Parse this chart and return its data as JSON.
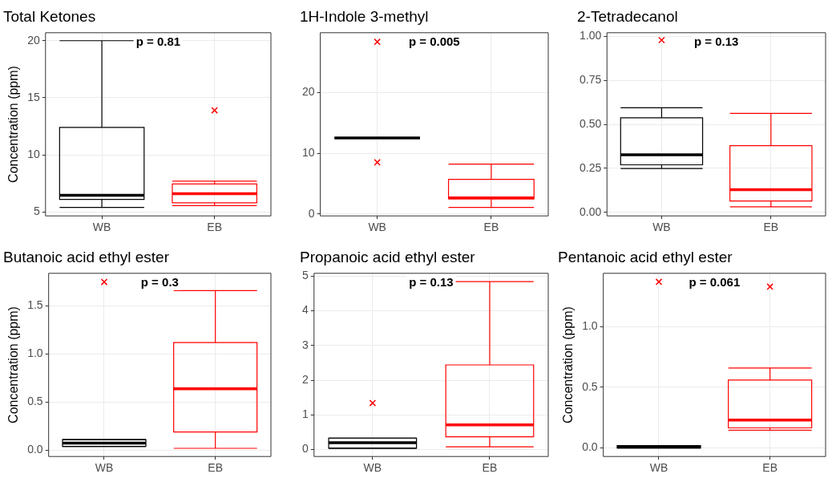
{
  "chart_data": [
    {
      "type": "box",
      "title": "Total Ketones",
      "ylabel": "Concentration (ppm)",
      "categories": [
        "WB",
        "EB"
      ],
      "ylim": [
        4.65,
        20.7
      ],
      "yticks": [
        5,
        10,
        15,
        20
      ],
      "grid": true,
      "annotations": [
        "p = 0.81"
      ],
      "series": [
        {
          "type": "box",
          "colors": [
            "#000000",
            "#ff0000"
          ],
          "boxes": [
            {
              "low": 5.4,
              "q1": 6.1,
              "median": 6.45,
              "q3": 12.4,
              "high": 20
            },
            {
              "low": 5.55,
              "q1": 5.8,
              "median": 6.6,
              "q3": 7.45,
              "high": 7.7
            }
          ]
        },
        {
          "type": "scatter",
          "marker": "cross",
          "color": "#ff0000",
          "x": [
            "EB"
          ],
          "values": [
            13.9
          ]
        }
      ]
    },
    {
      "type": "box",
      "title": "1H-Indole 3-methyl",
      "categories": [
        "WB",
        "EB"
      ],
      "ylim": [
        -0.3,
        29.8
      ],
      "yticks": [
        0,
        10,
        20
      ],
      "grid": true,
      "annotations": [
        "p = 0.005"
      ],
      "series": [
        {
          "type": "box",
          "colors": [
            "#000000",
            "#ff0000"
          ],
          "boxes": [
            {
              "low": 12.5,
              "q1": 12.5,
              "median": 12.5,
              "q3": 12.5,
              "high": 12.5
            },
            {
              "low": 1.1,
              "q1": 2.5,
              "median": 2.65,
              "q3": 5.7,
              "high": 8.2
            }
          ]
        },
        {
          "type": "scatter",
          "marker": "cross",
          "color": "#ff0000",
          "x": [
            "WB",
            "WB"
          ],
          "values": [
            28.3,
            8.5
          ]
        }
      ]
    },
    {
      "type": "box",
      "title": "2-Tetradecanol",
      "categories": [
        "WB",
        "EB"
      ],
      "ylim": [
        -0.02,
        1.02
      ],
      "yticks": [
        {
          "value": 0,
          "label": "0.00"
        },
        {
          "value": 0.25,
          "label": "0.25"
        },
        {
          "value": 0.5,
          "label": "0.50"
        },
        {
          "value": 0.75,
          "label": "0.75"
        },
        {
          "value": 1,
          "label": "1.00"
        }
      ],
      "grid": true,
      "annotations": [
        "p = 0.13"
      ],
      "series": [
        {
          "type": "box",
          "colors": [
            "#000000",
            "#ff0000"
          ],
          "boxes": [
            {
              "low": 0.249,
              "q1": 0.27,
              "median": 0.327,
              "q3": 0.537,
              "high": 0.594
            },
            {
              "low": 0.032,
              "q1": 0.065,
              "median": 0.129,
              "q3": 0.379,
              "high": 0.562
            }
          ]
        },
        {
          "type": "scatter",
          "marker": "cross",
          "color": "#ff0000",
          "x": [
            "WB"
          ],
          "values": [
            0.978
          ]
        }
      ]
    },
    {
      "type": "box",
      "title": "Butanoic acid ethyl ester",
      "ylabel": "Concentration (ppm)",
      "categories": [
        "WB",
        "EB"
      ],
      "ylim": [
        -0.065,
        1.84
      ],
      "yticks": [
        {
          "value": 0,
          "label": "0.0"
        },
        {
          "value": 0.5,
          "label": "0.5"
        },
        {
          "value": 1,
          "label": "1.0"
        },
        {
          "value": 1.5,
          "label": "1.5"
        }
      ],
      "grid": true,
      "annotations": [
        "p = 0.3"
      ],
      "series": [
        {
          "type": "box",
          "colors": [
            "#000000",
            "#ff0000"
          ],
          "boxes": [
            {
              "low": 0.04,
              "q1": 0.04,
              "median": 0.074,
              "q3": 0.11,
              "high": 0.11
            },
            {
              "low": 0.02,
              "q1": 0.19,
              "median": 0.64,
              "q3": 1.12,
              "high": 1.66
            }
          ]
        },
        {
          "type": "scatter",
          "marker": "cross",
          "color": "#ff0000",
          "x": [
            "WB"
          ],
          "values": [
            1.75
          ]
        }
      ]
    },
    {
      "type": "box",
      "title": "Propanoic acid ethyl ester",
      "categories": [
        "WB",
        "EB"
      ],
      "ylim": [
        -0.2,
        5.08
      ],
      "yticks": [
        0,
        1,
        2,
        3,
        4,
        5
      ],
      "grid": true,
      "annotations": [
        "p = 0.13"
      ],
      "series": [
        {
          "type": "box",
          "colors": [
            "#000000",
            "#ff0000"
          ],
          "boxes": [
            {
              "low": 0.04,
              "q1": 0.04,
              "median": 0.2,
              "q3": 0.33,
              "high": 0.33
            },
            {
              "low": 0.08,
              "q1": 0.37,
              "median": 0.71,
              "q3": 2.44,
              "high": 4.84
            }
          ]
        },
        {
          "type": "scatter",
          "marker": "cross",
          "color": "#ff0000",
          "x": [
            "WB"
          ],
          "values": [
            1.34
          ]
        }
      ]
    },
    {
      "type": "box",
      "title": "Pentanoic acid ethyl ester",
      "ylabel": "Concentration (ppm)",
      "categories": [
        "WB",
        "EB"
      ],
      "ylim": [
        -0.07,
        1.44
      ],
      "yticks": [
        {
          "value": 0,
          "label": "0.0"
        },
        {
          "value": 0.5,
          "label": "0.5"
        },
        {
          "value": 1,
          "label": "1.0"
        }
      ],
      "grid": true,
      "annotations": [
        "p = 0.061"
      ],
      "series": [
        {
          "type": "box",
          "colors": [
            "#000000",
            "#ff0000"
          ],
          "boxes": [
            {
              "low": 0,
              "q1": 0,
              "median": 0.01,
              "q3": 0.02,
              "high": 0.02
            },
            {
              "low": 0.147,
              "q1": 0.166,
              "median": 0.23,
              "q3": 0.56,
              "high": 0.66
            }
          ]
        },
        {
          "type": "scatter",
          "marker": "cross",
          "color": "#ff0000",
          "x": [
            "WB",
            "EB"
          ],
          "values": [
            1.37,
            1.33
          ]
        }
      ]
    }
  ]
}
